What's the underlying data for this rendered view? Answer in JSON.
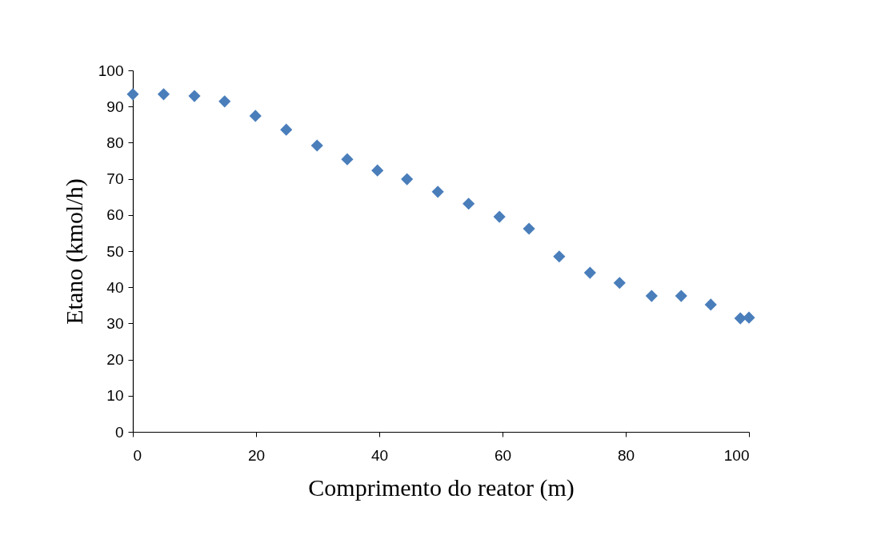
{
  "chart_data": {
    "type": "scatter",
    "xlabel": "Comprimento do reator (m)",
    "ylabel": "Etano (kmol/h)",
    "x": [
      0,
      5,
      10,
      14.9,
      19.9,
      24.9,
      29.9,
      34.8,
      39.7,
      44.5,
      49.5,
      54.5,
      59.5,
      64.3,
      69.2,
      74.2,
      79,
      84.2,
      89,
      93.8,
      98.6,
      100
    ],
    "series": [
      {
        "color": "#4a7ebb",
        "values": [
          93.4,
          93.4,
          92.9,
          91.4,
          87.4,
          83.6,
          79.2,
          75.4,
          72.3,
          69.9,
          66.4,
          63.1,
          59.5,
          56.2,
          48.5,
          44,
          41.2,
          37.6,
          37.6,
          35.2,
          31.4,
          31.6
        ]
      }
    ],
    "xlim": [
      0,
      100
    ],
    "xticks": [
      0,
      20,
      40,
      60,
      80,
      100
    ],
    "ylim": [
      0,
      100
    ],
    "yticks": [
      0,
      10,
      20,
      30,
      40,
      50,
      60,
      70,
      80,
      90,
      100
    ],
    "grid": false,
    "marker": "diamond"
  }
}
